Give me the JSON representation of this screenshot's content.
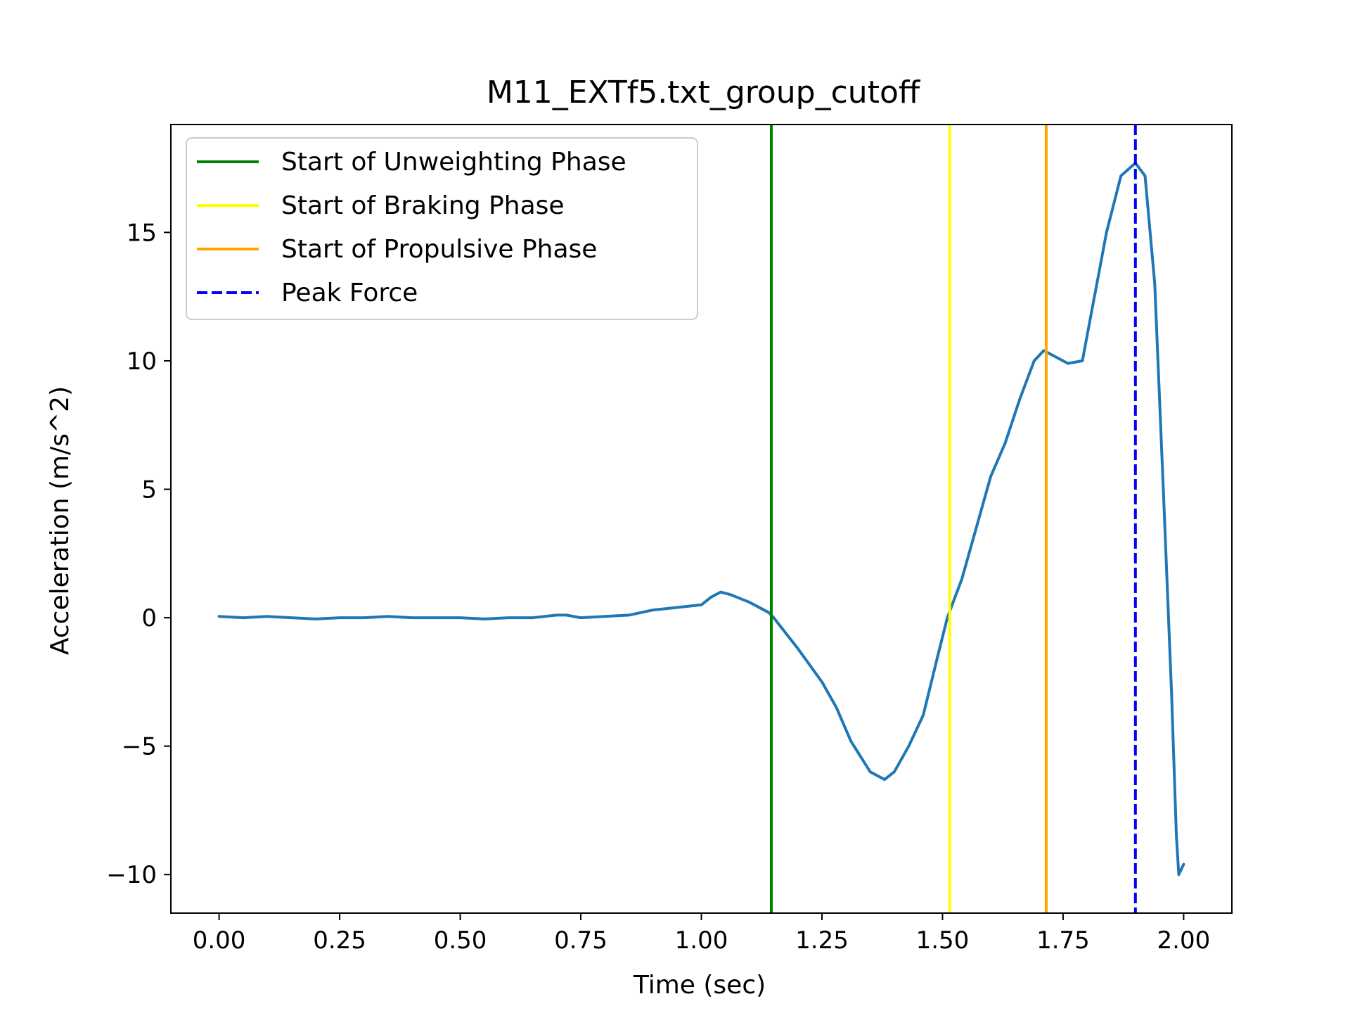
{
  "chart_data": {
    "type": "line",
    "title": "M11_EXTf5.txt_group_cutoff",
    "xlabel": "Time (sec)",
    "ylabel": "Acceleration (m/s^2)",
    "xlim": [
      -0.1,
      2.1
    ],
    "ylim": [
      -11.5,
      19.2
    ],
    "xticks": [
      0.0,
      0.25,
      0.5,
      0.75,
      1.0,
      1.25,
      1.5,
      1.75,
      2.0
    ],
    "xtick_labels": [
      "0.00",
      "0.25",
      "0.50",
      "0.75",
      "1.00",
      "1.25",
      "1.50",
      "1.75",
      "2.00"
    ],
    "yticks": [
      -10,
      -5,
      0,
      5,
      10,
      15
    ],
    "ytick_labels": [
      "−10",
      "−5",
      "0",
      "5",
      "10",
      "15"
    ],
    "grid": false,
    "legend_position": "top-left",
    "series": [
      {
        "color": "#1f77b4",
        "x": [
          0.0,
          0.05,
          0.1,
          0.15,
          0.2,
          0.25,
          0.3,
          0.35,
          0.4,
          0.45,
          0.5,
          0.55,
          0.6,
          0.65,
          0.7,
          0.72,
          0.75,
          0.8,
          0.85,
          0.9,
          0.95,
          1.0,
          1.02,
          1.04,
          1.06,
          1.1,
          1.14,
          1.15,
          1.2,
          1.25,
          1.28,
          1.31,
          1.35,
          1.38,
          1.4,
          1.43,
          1.46,
          1.49,
          1.51,
          1.54,
          1.57,
          1.6,
          1.63,
          1.66,
          1.69,
          1.71,
          1.73,
          1.76,
          1.79,
          1.81,
          1.84,
          1.87,
          1.9,
          1.92,
          1.94,
          1.96,
          1.975,
          1.985,
          1.99,
          2.0
        ],
        "y": [
          0.05,
          0.0,
          0.05,
          0.0,
          -0.05,
          0.0,
          0.0,
          0.05,
          0.0,
          0.0,
          0.0,
          -0.05,
          0.0,
          0.0,
          0.1,
          0.1,
          0.0,
          0.05,
          0.1,
          0.3,
          0.4,
          0.5,
          0.8,
          1.0,
          0.9,
          0.6,
          0.2,
          0.0,
          -1.2,
          -2.5,
          -3.5,
          -4.8,
          -6.0,
          -6.3,
          -6.0,
          -5.0,
          -3.8,
          -1.5,
          0.0,
          1.5,
          3.5,
          5.5,
          6.8,
          8.5,
          10.0,
          10.4,
          10.2,
          9.9,
          10.0,
          12.0,
          15.0,
          17.2,
          17.7,
          17.2,
          13.0,
          4.0,
          -3.0,
          -8.5,
          -10.0,
          -9.6
        ]
      }
    ],
    "vlines": [
      {
        "name": "Start of Unweighting Phase",
        "x": 1.145,
        "color": "#008000",
        "style": "solid"
      },
      {
        "name": "Start of Braking Phase",
        "x": 1.515,
        "color": "#ffff00",
        "style": "solid"
      },
      {
        "name": "Start of Propulsive Phase",
        "x": 1.715,
        "color": "#ffa500",
        "style": "solid"
      },
      {
        "name": "Peak Force",
        "x": 1.9,
        "color": "#0000ff",
        "style": "dashed"
      }
    ]
  }
}
